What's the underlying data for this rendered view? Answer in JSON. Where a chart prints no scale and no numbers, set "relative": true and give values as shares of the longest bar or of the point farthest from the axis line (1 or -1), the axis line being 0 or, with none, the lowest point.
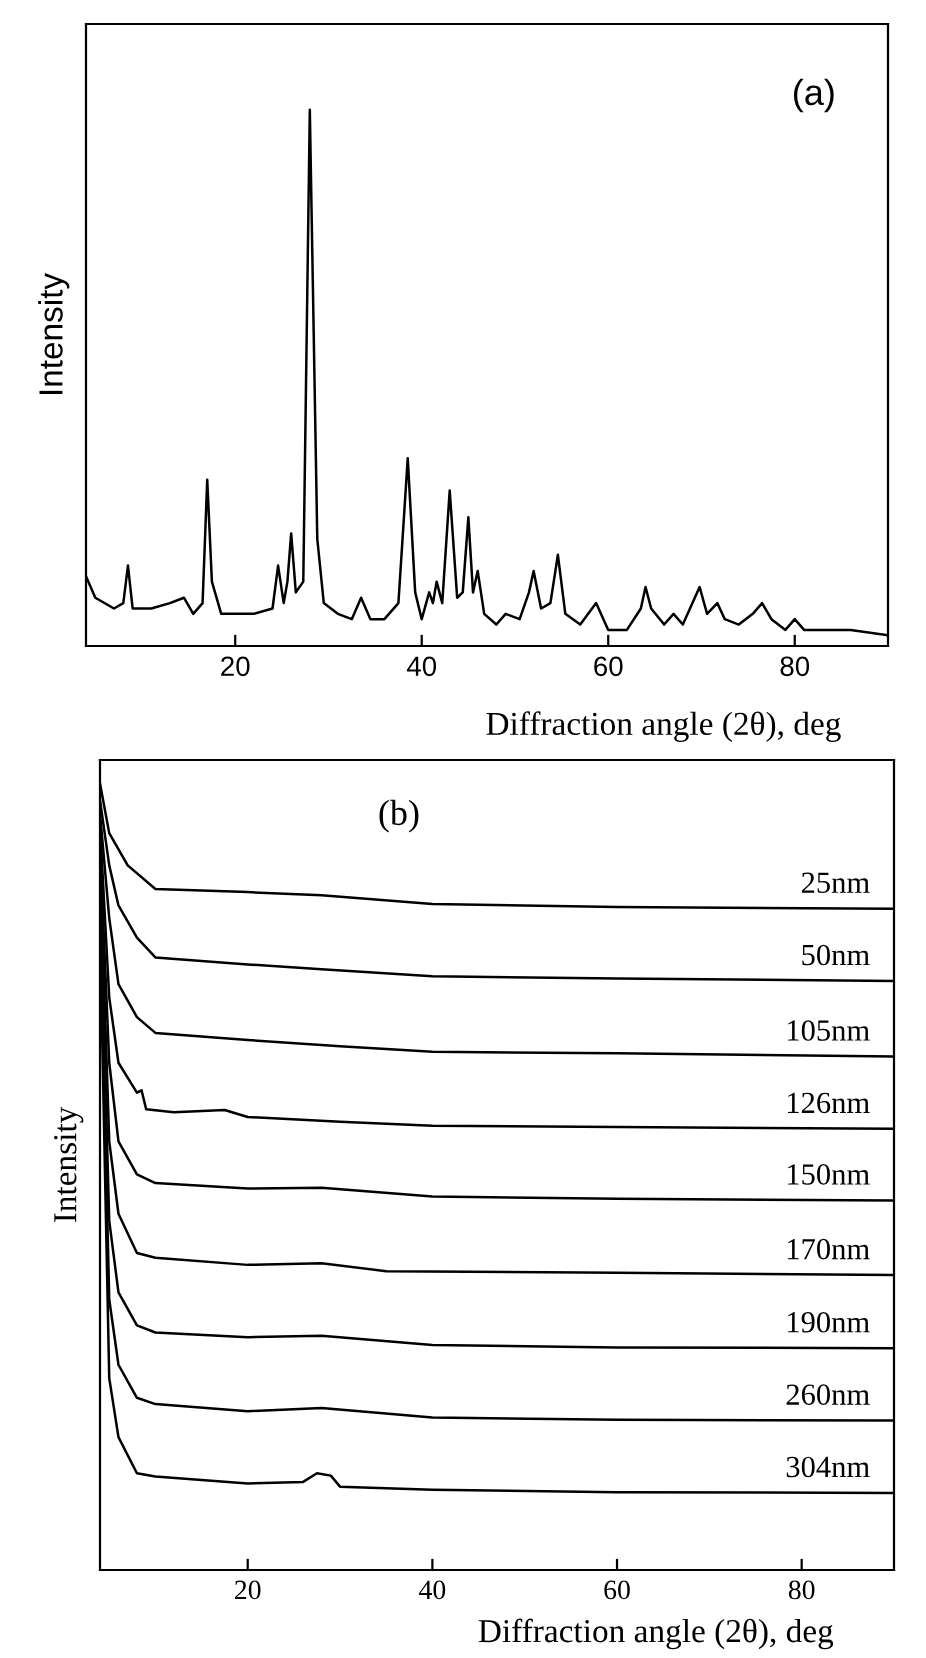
{
  "chart_data": [
    {
      "type": "line",
      "relative": true,
      "ylabel": "Intensity",
      "xlabel": "Diffraction angle (2θ), deg",
      "annotations": [
        "(a)"
      ],
      "xlim": [
        4,
        90
      ],
      "xticks": [
        20,
        40,
        60,
        80
      ],
      "tick_labels": "x",
      "marker": "none",
      "line_style": "solid",
      "series": [
        {
          "color": "#000000",
          "x": [
            4,
            5,
            7,
            8,
            8.5,
            9,
            11,
            13,
            14.5,
            15.5,
            16.5,
            17,
            17.5,
            18.5,
            20,
            22,
            24,
            24.6,
            25.2,
            25.6,
            26,
            26.5,
            27.3,
            28,
            28.8,
            29.5,
            31,
            32.5,
            33.5,
            34.5,
            36,
            37.5,
            38.5,
            39.3,
            40,
            40.8,
            41.2,
            41.6,
            42.2,
            43,
            43.8,
            44.4,
            45,
            45.5,
            46,
            46.7,
            48,
            49,
            50.5,
            51.5,
            52,
            52.8,
            53.8,
            54.6,
            55.4,
            57,
            58.7,
            60,
            62,
            63.5,
            64,
            64.6,
            66,
            67,
            68,
            69.8,
            70.6,
            71.7,
            72.5,
            74,
            75.5,
            76.5,
            77.5,
            79,
            80,
            81,
            83,
            86,
            90
          ],
          "values": [
            0.13,
            0.09,
            0.07,
            0.08,
            0.15,
            0.07,
            0.07,
            0.08,
            0.09,
            0.06,
            0.08,
            0.31,
            0.12,
            0.06,
            0.06,
            0.06,
            0.07,
            0.15,
            0.08,
            0.12,
            0.21,
            0.1,
            0.12,
            1.0,
            0.2,
            0.08,
            0.06,
            0.05,
            0.09,
            0.05,
            0.05,
            0.08,
            0.35,
            0.1,
            0.05,
            0.1,
            0.08,
            0.12,
            0.08,
            0.29,
            0.09,
            0.1,
            0.24,
            0.1,
            0.14,
            0.06,
            0.04,
            0.06,
            0.05,
            0.1,
            0.14,
            0.07,
            0.08,
            0.17,
            0.06,
            0.04,
            0.08,
            0.03,
            0.03,
            0.07,
            0.11,
            0.07,
            0.04,
            0.06,
            0.04,
            0.11,
            0.06,
            0.08,
            0.05,
            0.04,
            0.06,
            0.08,
            0.05,
            0.03,
            0.05,
            0.03,
            0.03,
            0.03,
            0.02
          ]
        }
      ]
    },
    {
      "type": "line",
      "relative": true,
      "ylabel": "Intensity",
      "xlabel": "Diffraction angle (2θ), deg",
      "annotations": [
        "(b)"
      ],
      "xlim": [
        4,
        90
      ],
      "xticks": [
        20,
        40,
        60,
        80
      ],
      "tick_labels": "x",
      "marker": "none",
      "line_style": "solid",
      "series": [
        {
          "name": "25nm",
          "color": "#000000",
          "x": [
            4,
            5,
            7,
            10,
            20,
            28,
            40,
            60,
            90
          ],
          "values": [
            1.0,
            0.937,
            0.896,
            0.866,
            0.862,
            0.858,
            0.847,
            0.843,
            0.841
          ]
        },
        {
          "name": "50nm",
          "color": "#000000",
          "x": [
            4,
            5,
            6,
            8,
            10,
            20,
            28,
            40,
            60,
            90
          ],
          "values": [
            0.979,
            0.896,
            0.845,
            0.804,
            0.779,
            0.77,
            0.764,
            0.755,
            0.752,
            0.749
          ]
        },
        {
          "name": "105nm",
          "color": "#000000",
          "x": [
            4,
            5,
            6,
            8,
            10,
            20,
            30,
            40,
            60,
            90
          ],
          "values": [
            0.962,
            0.829,
            0.745,
            0.703,
            0.683,
            0.674,
            0.666,
            0.659,
            0.657,
            0.653
          ]
        },
        {
          "name": "126nm",
          "color": "#000000",
          "x": [
            4,
            5,
            6,
            8,
            8.5,
            9,
            12,
            17.5,
            20,
            30,
            40,
            90
          ],
          "values": [
            0.946,
            0.728,
            0.645,
            0.607,
            0.61,
            0.586,
            0.582,
            0.585,
            0.576,
            0.57,
            0.565,
            0.561
          ]
        },
        {
          "name": "150nm",
          "color": "#000000",
          "x": [
            4,
            5,
            6,
            8,
            10,
            20,
            28,
            40,
            60,
            90
          ],
          "values": [
            0.921,
            0.645,
            0.545,
            0.503,
            0.492,
            0.485,
            0.486,
            0.475,
            0.472,
            0.47
          ]
        },
        {
          "name": "170nm",
          "color": "#000000",
          "x": [
            4,
            5,
            6,
            8,
            10,
            20,
            28,
            35,
            60,
            90
          ],
          "values": [
            0.904,
            0.545,
            0.453,
            0.403,
            0.397,
            0.388,
            0.39,
            0.38,
            0.378,
            0.375
          ]
        },
        {
          "name": "190nm",
          "color": "#000000",
          "x": [
            4,
            5,
            6,
            8,
            10,
            20,
            28,
            40,
            60,
            90
          ],
          "values": [
            0.87,
            0.444,
            0.353,
            0.311,
            0.302,
            0.296,
            0.298,
            0.286,
            0.283,
            0.282
          ]
        },
        {
          "name": "260nm",
          "color": "#000000",
          "x": [
            4,
            5,
            6,
            8,
            10,
            20,
            28,
            40,
            60,
            90
          ],
          "values": [
            0.845,
            0.344,
            0.261,
            0.219,
            0.211,
            0.202,
            0.206,
            0.194,
            0.191,
            0.19
          ]
        },
        {
          "name": "304nm",
          "color": "#000000",
          "x": [
            4,
            5,
            6,
            8,
            10,
            20,
            26,
            27.5,
            29,
            30,
            40,
            60,
            90
          ],
          "values": [
            0.812,
            0.244,
            0.169,
            0.123,
            0.119,
            0.11,
            0.112,
            0.123,
            0.12,
            0.106,
            0.102,
            0.099,
            0.098
          ]
        }
      ]
    }
  ]
}
